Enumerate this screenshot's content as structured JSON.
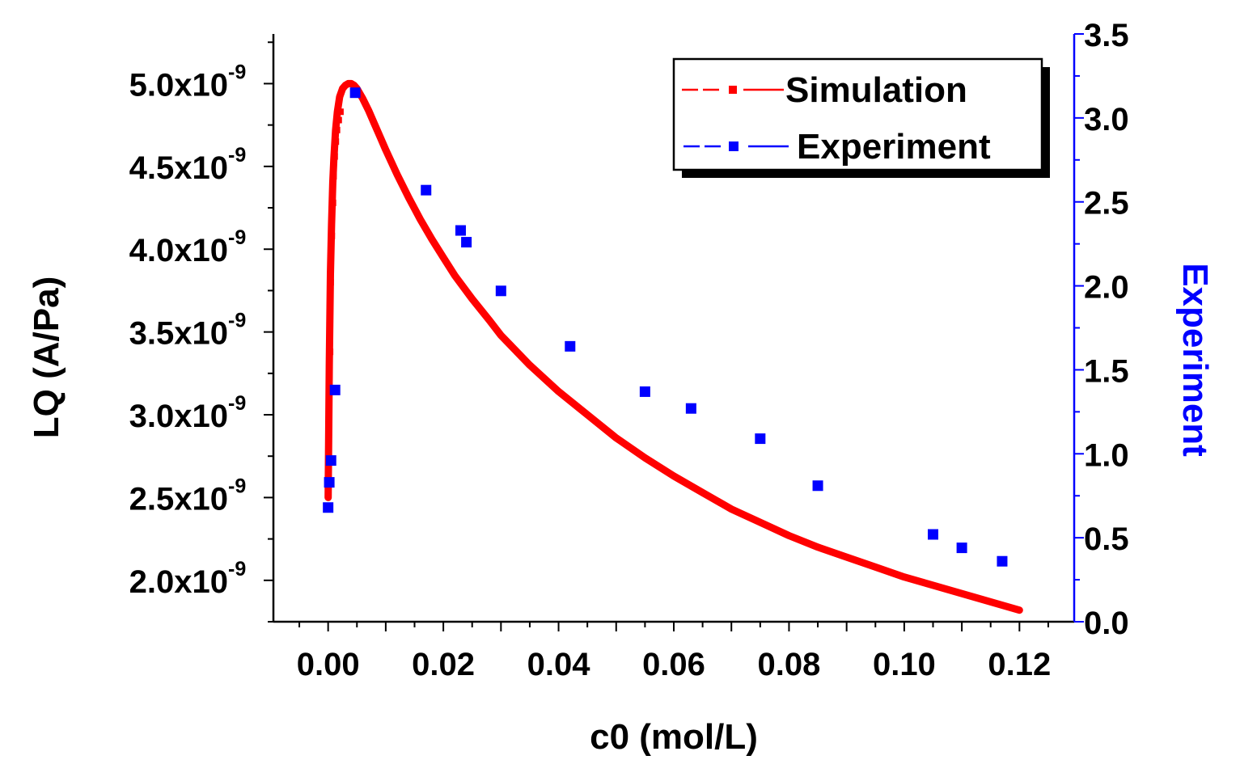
{
  "chart_data": {
    "type": "line+scatter",
    "title": "",
    "xlabel": "c0 (mol/L)",
    "ylabel_left": "LQ (A/Pa)",
    "ylabel_right": "Experiment",
    "xlim": [
      -0.0095,
      0.1295
    ],
    "ylim_left": [
      1.75e-09,
      5.3e-09
    ],
    "ylim_right": [
      0.0,
      3.5
    ],
    "x_ticks": [
      0.0,
      0.02,
      0.04,
      0.06,
      0.08,
      0.1,
      0.12
    ],
    "x_tick_labels": [
      "0.00",
      "0.02",
      "0.04",
      "0.06",
      "0.08",
      "0.10",
      "0.12"
    ],
    "y_left_ticks": [
      2e-09,
      2.5e-09,
      3e-09,
      3.5e-09,
      4e-09,
      4.5e-09,
      5e-09
    ],
    "y_left_tick_mantissas": [
      "2.0x10",
      "2.5x10",
      "3.0x10",
      "3.5x10",
      "4.0x10",
      "4.5x10",
      "5.0x10"
    ],
    "y_left_tick_exponent": "-9",
    "y_right_ticks": [
      0.0,
      0.5,
      1.0,
      1.5,
      2.0,
      2.5,
      3.0,
      3.5
    ],
    "y_right_tick_labels": [
      "0.0",
      "0.5",
      "1.0",
      "1.5",
      "2.0",
      "2.5",
      "3.0",
      "3.5"
    ],
    "legend": {
      "position": "top-right",
      "entries": [
        {
          "label": "Simulation",
          "color": "#ff0000"
        },
        {
          "label": "Experiment",
          "color": "#0000ff"
        }
      ]
    },
    "series": [
      {
        "name": "Simulation",
        "axis": "left",
        "color": "#ff0000",
        "style": "thick-line",
        "x": [
          0.0,
          0.0002,
          0.0004,
          0.0006,
          0.0008,
          0.001,
          0.0013,
          0.0016,
          0.002,
          0.0025,
          0.003,
          0.0035,
          0.004,
          0.0045,
          0.005,
          0.006,
          0.007,
          0.008,
          0.009,
          0.01,
          0.012,
          0.014,
          0.016,
          0.018,
          0.02,
          0.022,
          0.025,
          0.028,
          0.03,
          0.035,
          0.04,
          0.045,
          0.05,
          0.055,
          0.06,
          0.065,
          0.07,
          0.075,
          0.08,
          0.085,
          0.09,
          0.095,
          0.1,
          0.105,
          0.11,
          0.115,
          0.12
        ],
        "y": [
          2.5e-09,
          3.3e-09,
          3.85e-09,
          4.15e-09,
          4.4e-09,
          4.55e-09,
          4.72e-09,
          4.83e-09,
          4.92e-09,
          4.97e-09,
          4.99e-09,
          5e-09,
          5e-09,
          4.99e-09,
          4.97e-09,
          4.91e-09,
          4.84e-09,
          4.76e-09,
          4.68e-09,
          4.6e-09,
          4.45e-09,
          4.31e-09,
          4.18e-09,
          4.06e-09,
          3.95e-09,
          3.84e-09,
          3.7e-09,
          3.57e-09,
          3.48e-09,
          3.3e-09,
          3.14e-09,
          3e-09,
          2.86e-09,
          2.74e-09,
          2.63e-09,
          2.53e-09,
          2.43e-09,
          2.35e-09,
          2.27e-09,
          2.2e-09,
          2.14e-09,
          2.08e-09,
          2.02e-09,
          1.97e-09,
          1.92e-09,
          1.87e-09,
          1.82e-09
        ]
      },
      {
        "name": "Simulation (sampled markers)",
        "axis": "left",
        "color": "#ff0000",
        "style": "small-markers",
        "x": [
          0.0002,
          0.0003,
          0.0005,
          0.0007,
          0.0008,
          0.001,
          0.0012,
          0.0014,
          0.0017,
          0.002
        ],
        "y": [
          3.38e-09,
          3.8e-09,
          4.08e-09,
          4.28e-09,
          4.44e-09,
          4.56e-09,
          4.65e-09,
          4.72e-09,
          4.78e-09,
          4.83e-09
        ]
      },
      {
        "name": "Experiment",
        "axis": "right",
        "color": "#0000ff",
        "style": "square-markers",
        "x": [
          0.0,
          0.0002,
          0.0005,
          0.0012,
          0.0047,
          0.017,
          0.023,
          0.024,
          0.03,
          0.042,
          0.055,
          0.063,
          0.075,
          0.085,
          0.105,
          0.11,
          0.117
        ],
        "y": [
          0.68,
          0.83,
          0.96,
          1.38,
          3.15,
          2.57,
          2.33,
          2.26,
          1.97,
          1.64,
          1.37,
          1.27,
          1.09,
          0.81,
          0.52,
          0.44,
          0.36
        ]
      }
    ]
  }
}
